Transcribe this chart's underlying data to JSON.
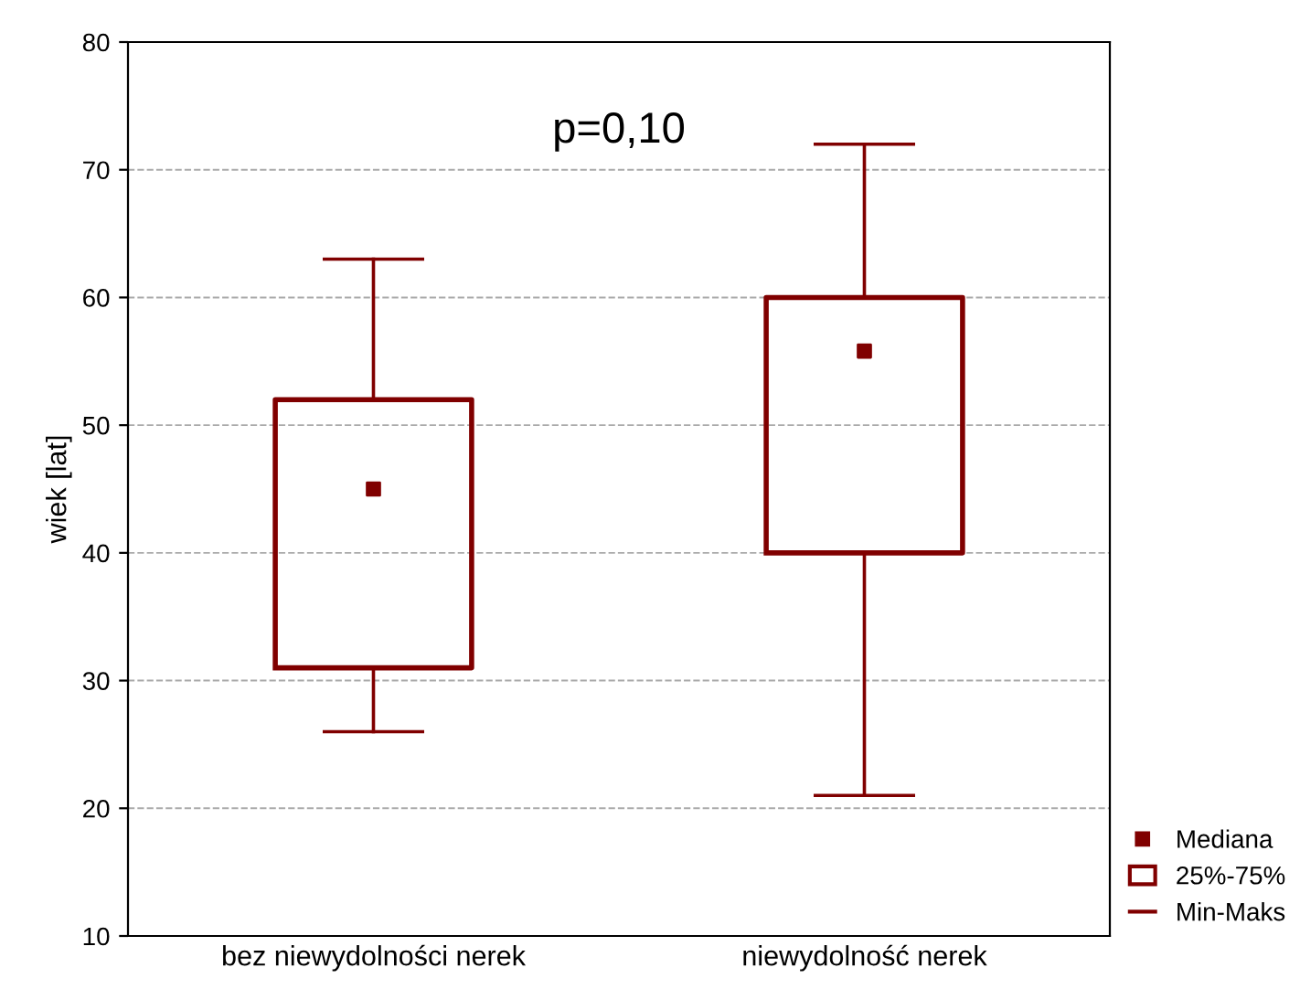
{
  "chart_data": {
    "type": "box",
    "ylabel": "wiek [lat]",
    "categories": [
      "bez niewydolności nerek",
      "niewydolność nerek"
    ],
    "ylim": [
      10,
      80
    ],
    "yticks": [
      10,
      20,
      30,
      40,
      50,
      60,
      70,
      80
    ],
    "grid": "y",
    "legend": "bottom right",
    "marker": "square",
    "series": [
      {
        "name": "25%-75%",
        "color": "#800000",
        "boxes": [
          {
            "low": 26,
            "q1": 31,
            "median": 45,
            "q3": 52,
            "high": 63
          },
          {
            "low": 21,
            "q1": 40,
            "median": 55.8,
            "q3": 60,
            "high": 72
          }
        ]
      }
    ],
    "annotations": [
      {
        "text": "p=0,10"
      },
      "Mediana",
      "Min-Maks"
    ]
  }
}
